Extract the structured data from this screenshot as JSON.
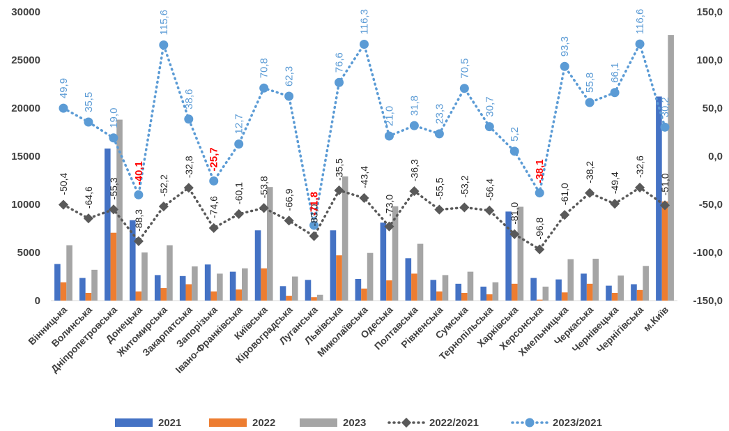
{
  "chart_data": {
    "type": "bar",
    "categories": [
      "Вінницька",
      "Волинська",
      "Дніпропетровська",
      "Донецька",
      "Житомирська",
      "Закарпатська",
      "Запорізька",
      "Івано-Франківська",
      "Київська",
      "Кіровоградська",
      "Луганська",
      "Львівська",
      "Миколаївська",
      "Одеська",
      "Полтавська",
      "Рівненська",
      "Сумська",
      "Тернопільська",
      "Харківська",
      "Херсонська",
      "Хмельницька",
      "Черкаська",
      "Чернівецька",
      "Чернігівська",
      "м.Київ"
    ],
    "y_left": {
      "min": 0,
      "max": 30000,
      "ticks": [
        "0",
        "5000",
        "10000",
        "15000",
        "20000",
        "25000",
        "30000"
      ]
    },
    "y_right": {
      "min": -150,
      "max": 150,
      "ticks": [
        "-150,0",
        "-100,0",
        "-50,0",
        "0,0",
        "50,0",
        "100,0",
        "150,0"
      ]
    },
    "series": [
      {
        "name": "2021",
        "kind": "bar",
        "axis": "left",
        "color": "#4472c4",
        "values": [
          3800,
          2350,
          15800,
          8350,
          2650,
          2550,
          3750,
          3000,
          7300,
          1500,
          2150,
          7300,
          2250,
          8100,
          4400,
          2150,
          1750,
          1450,
          9250,
          2350,
          2200,
          2800,
          1550,
          1700,
          21200
        ]
      },
      {
        "name": "2022",
        "kind": "bar",
        "axis": "left",
        "color": "#ed7d31",
        "values": [
          1900,
          800,
          7050,
          950,
          1300,
          1700,
          950,
          1150,
          3350,
          500,
          350,
          4700,
          1250,
          2100,
          2800,
          950,
          800,
          650,
          1750,
          100,
          850,
          1750,
          800,
          1100,
          10300
        ]
      },
      {
        "name": "2023",
        "kind": "bar",
        "axis": "left",
        "color": "#a5a5a5",
        "values": [
          5750,
          3200,
          18800,
          5000,
          5750,
          3550,
          2800,
          3350,
          11800,
          2500,
          600,
          12900,
          4950,
          9800,
          5900,
          2650,
          3000,
          1900,
          9750,
          1450,
          4300,
          4350,
          2600,
          3600,
          27600
        ]
      },
      {
        "name": "2022/2021",
        "kind": "line",
        "axis": "right",
        "color": "#595959",
        "values": [
          -50.4,
          -64.6,
          -55.3,
          -88.3,
          -52.2,
          -32.8,
          -74.6,
          -60.1,
          -53.8,
          -66.9,
          -83.0,
          -35.5,
          -43.4,
          -73.0,
          -36.3,
          -55.5,
          -53.2,
          -56.4,
          -81.0,
          -96.8,
          -61.0,
          -38.2,
          -49.4,
          -32.6,
          -51.0
        ],
        "labels": [
          "-50,4",
          "-64,6",
          "-55,3",
          "-88,3",
          "-52,2",
          "-32,8",
          "-74,6",
          "-60,1",
          "-53,8",
          "-66,9",
          "-83,0",
          "-35,5",
          "-43,4",
          "-73,0",
          "-36,3",
          "-55,5",
          "-53,2",
          "-56,4",
          "-81,0",
          "-96,8",
          "-61,0",
          "-38,2",
          "-49,4",
          "-32,6",
          "-51,0"
        ]
      },
      {
        "name": "2023/2021",
        "kind": "line",
        "axis": "right",
        "color": "#5b9bd5",
        "values": [
          49.9,
          35.5,
          19.0,
          -40.1,
          115.6,
          38.6,
          -25.7,
          12.7,
          70.8,
          62.3,
          -71.8,
          76.6,
          116.3,
          21.0,
          31.8,
          23.3,
          70.5,
          30.7,
          5.2,
          -38.1,
          93.3,
          55.8,
          66.1,
          116.6,
          30.2
        ],
        "labels": [
          "49,9",
          "35,5",
          "19,0",
          "-40,1",
          "115,6",
          "38,6",
          "-25,7",
          "12,7",
          "70,8",
          "62,3",
          "-71,8",
          "76,6",
          "116,3",
          "21,0",
          "31,8",
          "23,3",
          "70,5",
          "30,7",
          "5,2",
          "-38,1",
          "93,3",
          "55,8",
          "66,1",
          "116,6",
          "30,2"
        ],
        "highlight_color": "#ff0000",
        "highlight_indices": [
          3,
          6,
          10,
          19
        ]
      }
    ],
    "grid": false,
    "legend": "bottom"
  }
}
